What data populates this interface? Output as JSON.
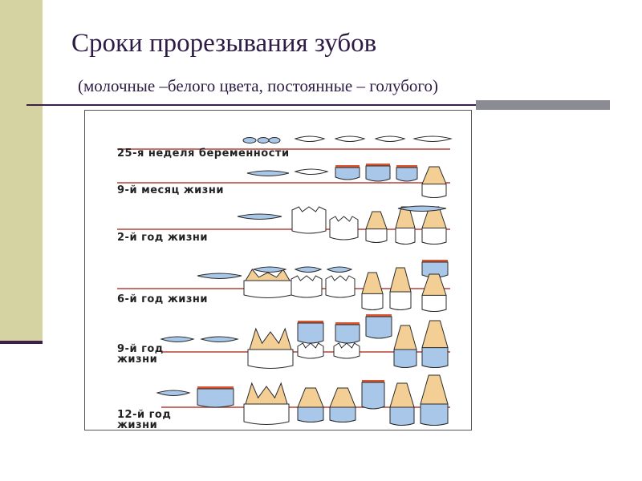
{
  "slide": {
    "title": "Сроки прорезывания зубов",
    "subtitle": "(молочные –белого цвета, постоянные – голубого)"
  },
  "figure": {
    "stages": [
      {
        "label_lines": [
          "25-я неделя беременности"
        ]
      },
      {
        "label_lines": [
          "9-й месяц жизни"
        ]
      },
      {
        "label_lines": [
          "2-й год жизни"
        ]
      },
      {
        "label_lines": [
          "6-й год жизни"
        ]
      },
      {
        "label_lines": [
          "9-й год",
          "жизни"
        ]
      },
      {
        "label_lines": [
          "12-й год",
          "жизни"
        ]
      }
    ],
    "colors": {
      "gumline": "#b5423a",
      "permanent": "#a9c7e8",
      "primary": "#ffffff",
      "root": "#f3cf95",
      "enamel_cap": "#d8552f",
      "outline": "#2a2a2a"
    }
  }
}
